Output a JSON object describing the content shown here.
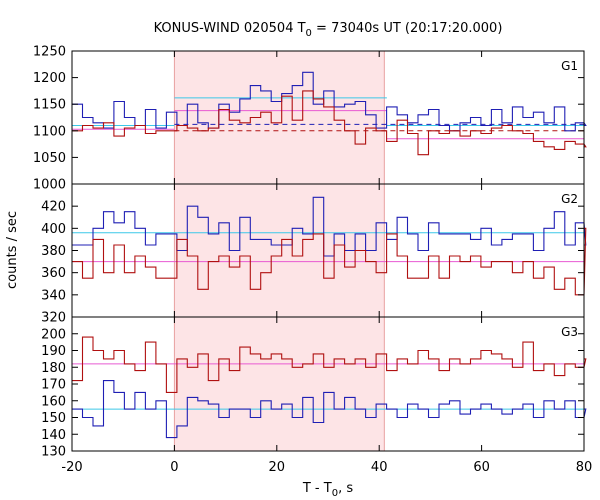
{
  "colors": {
    "blue": "#1f1fb4",
    "red": "#b01010",
    "cyan": "#3cc8e8",
    "pink": "#e85ad2",
    "interval_fill": "#fde4e6",
    "interval_edge": "#e8a0a0",
    "frame": "#000000"
  },
  "chart_data": {
    "type": "line",
    "title_prefix": "KONUS-WIND 020504 T",
    "title_sub": "0",
    "title_suffix": " = 73040s UT (20:17:20.000)",
    "xlabel_prefix": "T - T",
    "xlabel_sub": "0",
    "xlabel_suffix": ", s",
    "ylabel": "counts / sec",
    "xlim": [
      -20,
      80
    ],
    "x_ticks": [
      "-20",
      "0",
      "20",
      "40",
      "60",
      "80"
    ],
    "x_tick_values": [
      -20,
      0,
      20,
      40,
      60,
      80
    ],
    "bin_width": 2.048,
    "x_start": -20,
    "shaded_interval": [
      0,
      41
    ],
    "panels": [
      {
        "label": "G1",
        "ylim": [
          1000,
          1250
        ],
        "y_ticks": [
          1000,
          1050,
          1100,
          1150,
          1200,
          1250
        ],
        "series": [
          {
            "color": "blue",
            "values": [
              1150,
              1125,
              1115,
              1105,
              1155,
              1125,
              1110,
              1140,
              1105,
              1135,
              1110,
              1150,
              1115,
              1105,
              1150,
              1135,
              1160,
              1185,
              1175,
              1155,
              1170,
              1185,
              1210,
              1150,
              1175,
              1145,
              1150,
              1155,
              1130,
              1105,
              1145,
              1130,
              1115,
              1130,
              1140,
              1110,
              1100,
              1115,
              1125,
              1110,
              1140,
              1115,
              1145,
              1125,
              1135,
              1115,
              1145,
              1100,
              1115,
              1110
            ]
          },
          {
            "color": "red",
            "values": [
              1100,
              1110,
              1105,
              1115,
              1090,
              1105,
              1110,
              1095,
              1100,
              1100,
              1110,
              1105,
              1100,
              1105,
              1140,
              1120,
              1115,
              1125,
              1135,
              1115,
              1165,
              1120,
              1175,
              1160,
              1145,
              1120,
              1100,
              1075,
              1105,
              1100,
              1080,
              1120,
              1095,
              1055,
              1100,
              1095,
              1100,
              1090,
              1100,
              1095,
              1105,
              1110,
              1100,
              1095,
              1080,
              1070,
              1065,
              1080,
              1075,
              1070
            ]
          }
        ],
        "fits": [
          {
            "color": "cyan",
            "style": "solid",
            "x": [
              -20,
              0
            ],
            "y": 1110
          },
          {
            "color": "cyan",
            "style": "solid",
            "x": [
              0,
              41.5
            ],
            "y": 1162
          },
          {
            "color": "cyan",
            "style": "solid",
            "x": [
              41.5,
              80
            ],
            "y": 1110
          },
          {
            "color": "pink",
            "style": "solid",
            "x": [
              -20,
              0
            ],
            "y": 1103
          },
          {
            "color": "pink",
            "style": "solid",
            "x": [
              0,
              41.5
            ],
            "y": 1138
          },
          {
            "color": "pink",
            "style": "solid",
            "x": [
              41.5,
              80
            ],
            "y": 1085
          },
          {
            "color": "blue",
            "style": "dashed",
            "x": [
              0,
              80
            ],
            "y": 1112
          },
          {
            "color": "red",
            "style": "dashed",
            "x": [
              0,
              80
            ],
            "y": 1100
          }
        ]
      },
      {
        "label": "G2",
        "ylim": [
          320,
          440
        ],
        "y_ticks": [
          320,
          340,
          360,
          380,
          400,
          420
        ],
        "series": [
          {
            "color": "blue",
            "values": [
              385,
              385,
              400,
              415,
              405,
              415,
              400,
              385,
              395,
              395,
              380,
              420,
              410,
              395,
              405,
              380,
              410,
              390,
              390,
              385,
              385,
              400,
              395,
              428,
              375,
              395,
              380,
              395,
              380,
              405,
              390,
              410,
              395,
              380,
              405,
              395,
              395,
              395,
              390,
              400,
              385,
              390,
              395,
              395,
              380,
              400,
              415,
              385,
              405,
              385
            ]
          },
          {
            "color": "red",
            "values": [
              370,
              355,
              390,
              360,
              385,
              360,
              375,
              365,
              355,
              355,
              390,
              375,
              345,
              370,
              375,
              365,
              375,
              345,
              360,
              375,
              390,
              375,
              390,
              395,
              355,
              385,
              365,
              380,
              370,
              360,
              395,
              375,
              355,
              355,
              375,
              355,
              375,
              370,
              375,
              365,
              370,
              370,
              360,
              370,
              355,
              365,
              345,
              355,
              340,
              400
            ]
          }
        ],
        "fits": [
          {
            "color": "cyan",
            "style": "solid",
            "x": [
              -20,
              80
            ],
            "y": 396
          },
          {
            "color": "pink",
            "style": "solid",
            "x": [
              -20,
              80
            ],
            "y": 370
          }
        ]
      },
      {
        "label": "G3",
        "ylim": [
          130,
          210
        ],
        "y_ticks": [
          130,
          140,
          150,
          160,
          170,
          180,
          190,
          200
        ],
        "series": [
          {
            "color": "blue",
            "values": [
              155,
              150,
              145,
              172,
              165,
              155,
              165,
              155,
              160,
              138,
              145,
              162,
              160,
              158,
              150,
              155,
              155,
              150,
              160,
              155,
              158,
              150,
              162,
              147,
              165,
              155,
              162,
              155,
              150,
              158,
              155,
              150,
              158,
              155,
              150,
              158,
              160,
              152,
              155,
              158,
              155,
              152,
              155,
              158,
              150,
              160,
              155,
              160,
              150,
              155
            ]
          },
          {
            "color": "red",
            "values": [
              172,
              198,
              190,
              185,
              190,
              182,
              178,
              195,
              182,
              165,
              185,
              180,
              188,
              172,
              185,
              178,
              192,
              188,
              185,
              188,
              185,
              180,
              182,
              188,
              180,
              185,
              182,
              185,
              180,
              188,
              178,
              185,
              182,
              190,
              185,
              178,
              185,
              182,
              185,
              190,
              188,
              185,
              180,
              195,
              178,
              182,
              175,
              182,
              180,
              185
            ]
          }
        ],
        "fits": [
          {
            "color": "cyan",
            "style": "solid",
            "x": [
              -20,
              80
            ],
            "y": 155
          },
          {
            "color": "pink",
            "style": "solid",
            "x": [
              -20,
              80
            ],
            "y": 182
          }
        ]
      }
    ]
  }
}
